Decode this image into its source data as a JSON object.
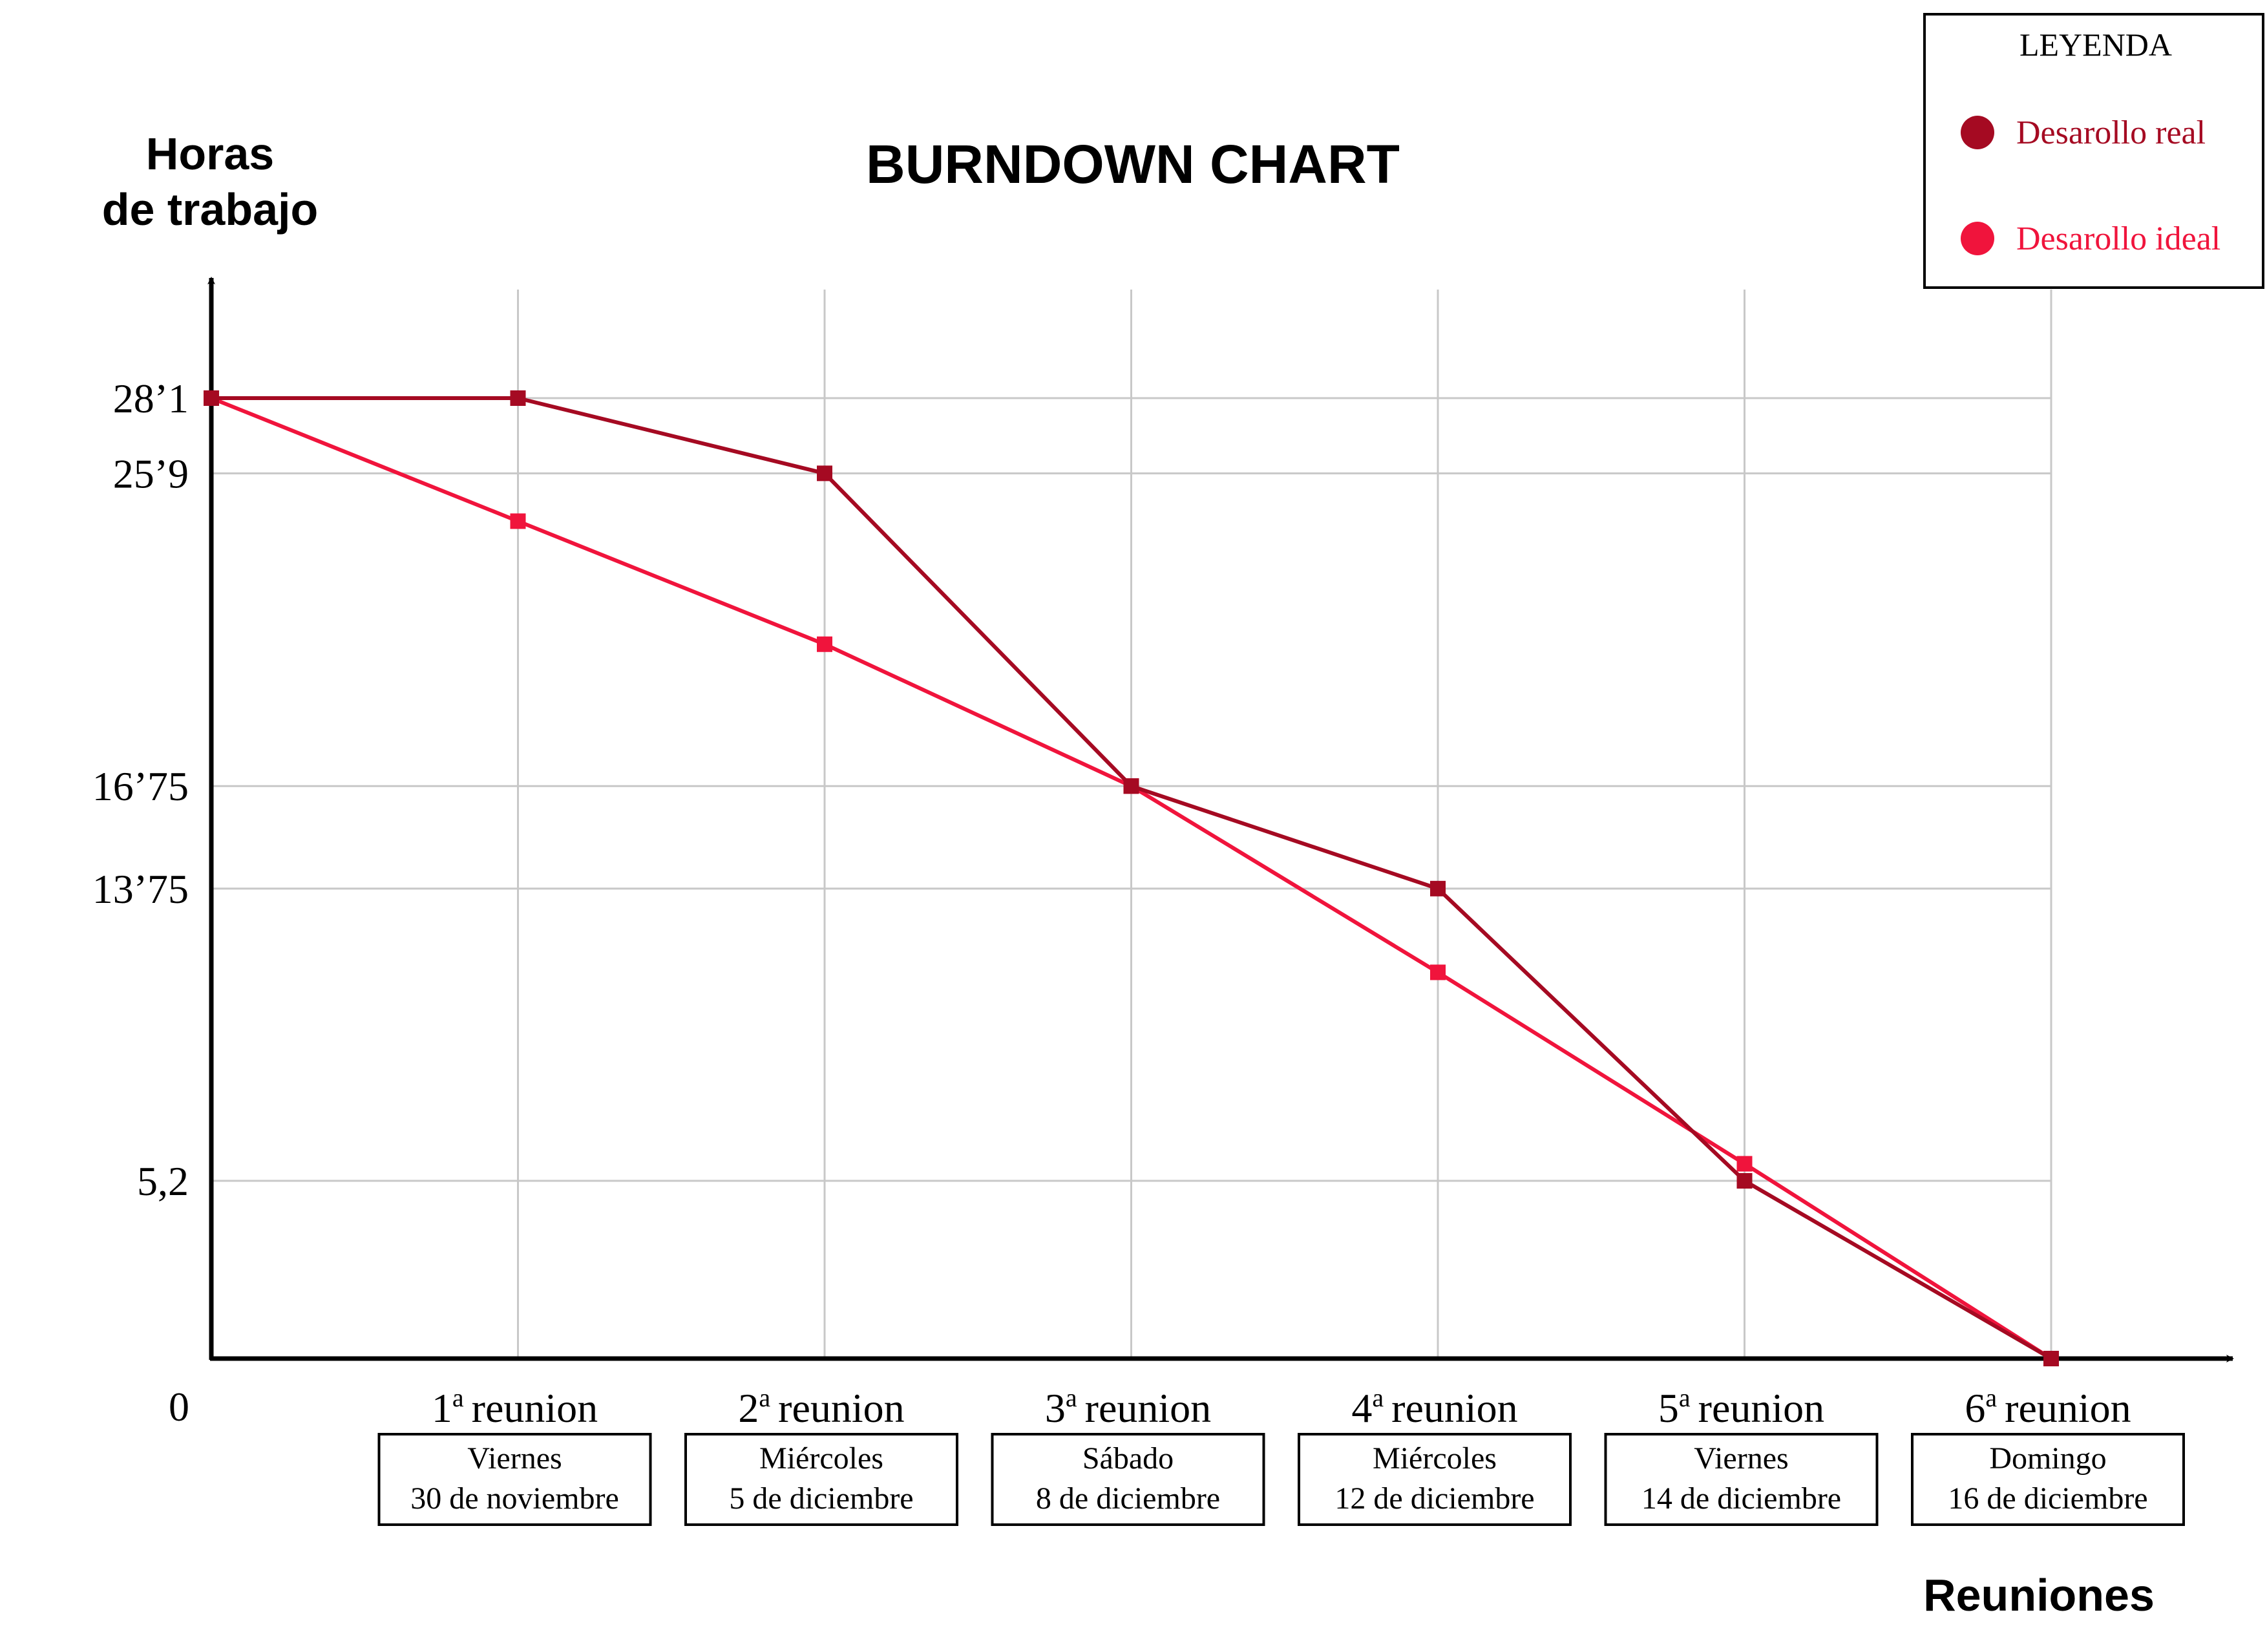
{
  "chart_data": {
    "type": "line",
    "title": "BURNDOWN CHART",
    "ylabel_line1": "Horas",
    "ylabel_line2": "de trabajo",
    "xlabel": "Reuniones",
    "origin_label": "0",
    "ylim": [
      0,
      28.1
    ],
    "y_ticks": [
      {
        "value": 28.1,
        "label": "28’1"
      },
      {
        "value": 25.9,
        "label": "25’9"
      },
      {
        "value": 16.75,
        "label": "16’75"
      },
      {
        "value": 13.75,
        "label": "13’75"
      },
      {
        "value": 5.2,
        "label": "5,2"
      }
    ],
    "categories": [
      {
        "ordinal": "1",
        "suffix": "a",
        "word": "reunion",
        "day": "Viernes",
        "date": "30 de noviembre"
      },
      {
        "ordinal": "2",
        "suffix": "a",
        "word": "reunion",
        "day": "Miércoles",
        "date": "5 de diciembre"
      },
      {
        "ordinal": "3",
        "suffix": "a",
        "word": "reunion",
        "day": "Sábado",
        "date": "8 de diciembre"
      },
      {
        "ordinal": "4",
        "suffix": "a",
        "word": "reunion",
        "day": "Miércoles",
        "date": "12 de diciembre"
      },
      {
        "ordinal": "5",
        "suffix": "a",
        "word": "reunion",
        "day": "Viernes",
        "date": "14 de diciembre"
      },
      {
        "ordinal": "6",
        "suffix": "a",
        "word": "reunion",
        "day": "Domingo",
        "date": "16 de diciembre"
      }
    ],
    "x": [
      0,
      1,
      2,
      3,
      4,
      5,
      6
    ],
    "series": [
      {
        "name": "Desarollo real",
        "color": "#a50a22",
        "values": [
          28.1,
          28.1,
          25.9,
          16.75,
          13.75,
          5.2,
          0
        ]
      },
      {
        "name": "Desarollo ideal",
        "color": "#f0143c",
        "values": [
          28.1,
          24.5,
          20.9,
          16.75,
          11.3,
          5.7,
          0
        ]
      }
    ],
    "grid": true,
    "legend": {
      "title": "LEYENDA",
      "position": "top-right"
    }
  }
}
